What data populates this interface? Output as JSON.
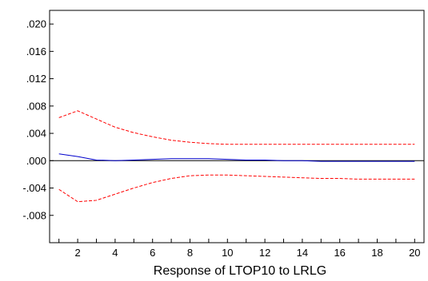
{
  "chart_data": {
    "type": "line",
    "title": "",
    "xlabel": "Response of LTOP10 to LRLG",
    "ylabel": "",
    "xlim": [
      0.5,
      20.5
    ],
    "ylim": [
      -0.012,
      0.022
    ],
    "x_ticks": [
      2,
      4,
      6,
      8,
      10,
      12,
      14,
      16,
      18,
      20
    ],
    "x_tick_labels": [
      "2",
      "4",
      "6",
      "8",
      "10",
      "12",
      "14",
      "16",
      "18",
      "20"
    ],
    "y_ticks": [
      0.02,
      0.016,
      0.012,
      0.008,
      0.004,
      0.0,
      -0.004,
      -0.008
    ],
    "y_tick_labels": [
      ".020",
      ".016",
      ".012",
      ".008",
      ".004",
      ".000",
      "-.004",
      "-.008"
    ],
    "zero_line": true,
    "grid": false,
    "x": [
      1,
      2,
      3,
      4,
      5,
      6,
      7,
      8,
      9,
      10,
      11,
      12,
      13,
      14,
      15,
      16,
      17,
      18,
      19,
      20
    ],
    "series": [
      {
        "color": "#ff0000",
        "style": "dashed",
        "values": [
          0.0063,
          0.0073,
          0.0061,
          0.0049,
          0.0041,
          0.0035,
          0.003,
          0.0027,
          0.0025,
          0.0024,
          0.0024,
          0.0024,
          0.0024,
          0.0024,
          0.0024,
          0.0024,
          0.0024,
          0.0024,
          0.0024,
          0.0024
        ]
      },
      {
        "color": "#0000cc",
        "style": "solid",
        "values": [
          0.001,
          0.0006,
          0.0001,
          0.0,
          0.0001,
          0.0002,
          0.0003,
          0.0003,
          0.0003,
          0.0002,
          0.0001,
          0.0001,
          0.0,
          0.0,
          -0.0001,
          -0.0001,
          -0.0001,
          -0.0001,
          -0.0001,
          -0.0001
        ]
      },
      {
        "color": "#ff0000",
        "style": "dashed",
        "values": [
          -0.0042,
          -0.006,
          -0.0058,
          -0.0049,
          -0.004,
          -0.0032,
          -0.0026,
          -0.0022,
          -0.0021,
          -0.0021,
          -0.0022,
          -0.0023,
          -0.0024,
          -0.0025,
          -0.0026,
          -0.0026,
          -0.0027,
          -0.0027,
          -0.0027,
          -0.0027
        ]
      }
    ]
  }
}
